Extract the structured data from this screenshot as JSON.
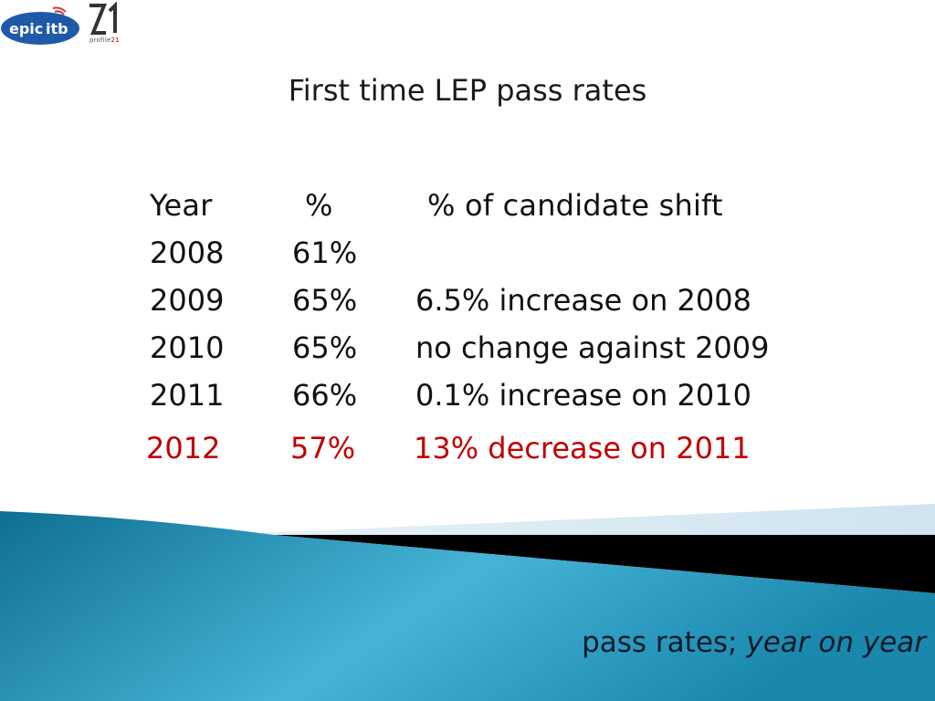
{
  "logos": {
    "epic_name": "epicitb",
    "profile_name": "profile21"
  },
  "title": "First time LEP pass rates",
  "table": {
    "headers": {
      "year": "Year",
      "percent": "%",
      "shift": "% of candidate shift"
    },
    "rows": [
      {
        "year": "2008",
        "percent": "61%",
        "shift": ""
      },
      {
        "year": "2009",
        "percent": "65%",
        "shift": "6.5% increase on 2008"
      },
      {
        "year": "2010",
        "percent": "65%",
        "shift": "no change against 2009"
      },
      {
        "year": "2011",
        "percent": "66%",
        "shift": "0.1% increase on 2010"
      },
      {
        "year": "2012",
        "percent": "57%",
        "shift": "13% decrease on 2011"
      }
    ]
  },
  "footer": {
    "caption_plain": "pass rates; ",
    "caption_italic": "year on year"
  },
  "colors": {
    "highlight": "#c00000",
    "teal": "#1b8bb0",
    "pale_blue": "#d8e9f2"
  }
}
